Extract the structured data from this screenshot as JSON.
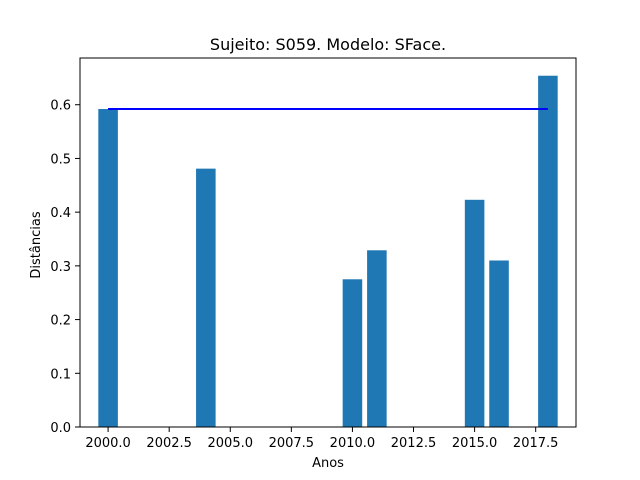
{
  "chart_data": {
    "type": "bar",
    "title": "Sujeito: S059. Modelo: SFace.",
    "xlabel": "Anos",
    "ylabel": "Distâncias",
    "x": [
      2000,
      2004,
      2010,
      2011,
      2015,
      2016,
      2018
    ],
    "values": [
      0.592,
      0.481,
      0.275,
      0.329,
      0.423,
      0.31,
      0.654
    ],
    "bar_width": 0.8,
    "xlim": [
      1998.85,
      2019.15
    ],
    "ylim": [
      0,
      0.687
    ],
    "xticks": [
      2000.0,
      2002.5,
      2005.0,
      2007.5,
      2010.0,
      2012.5,
      2015.0,
      2017.5
    ],
    "xtick_labels": [
      "2000.0",
      "2002.5",
      "2005.0",
      "2007.5",
      "2010.0",
      "2012.5",
      "2015.0",
      "2017.5"
    ],
    "yticks": [
      0.0,
      0.1,
      0.2,
      0.3,
      0.4,
      0.5,
      0.6
    ],
    "ytick_labels": [
      "0.0",
      "0.1",
      "0.2",
      "0.3",
      "0.4",
      "0.5",
      "0.6"
    ],
    "reference_line": {
      "x": [
        2000,
        2018
      ],
      "y": 0.592
    },
    "grid": false,
    "legend": "none",
    "colors": {
      "bar": "#1f77b4",
      "reference_line": "#0000ff",
      "axes": "#000000"
    }
  }
}
